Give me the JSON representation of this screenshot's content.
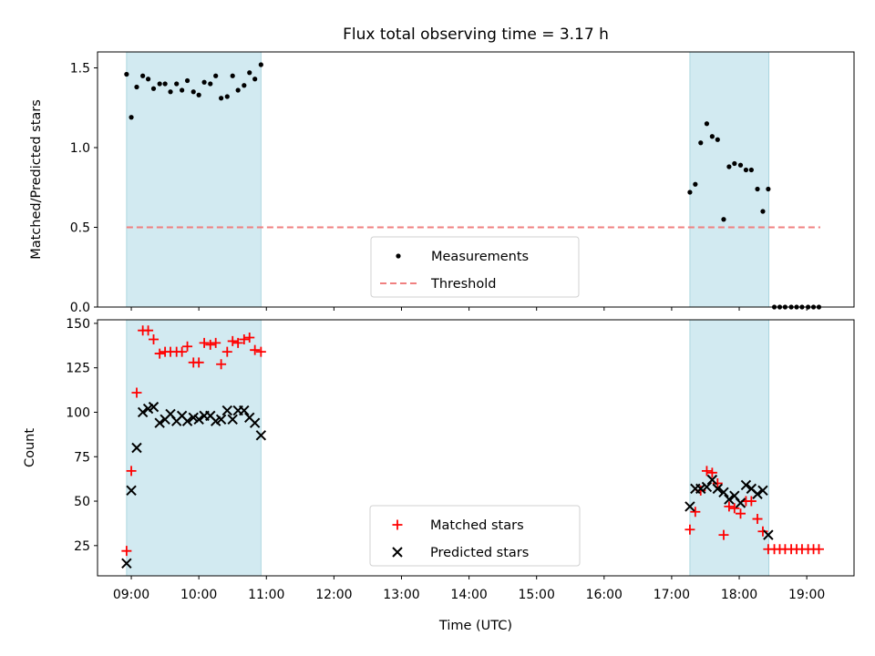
{
  "figure": {
    "title": "Flux total observing time = 3.17 h",
    "xlabel": "Time (UTC)"
  },
  "colors": {
    "shade": "#add8e6",
    "threshold": "#f08080",
    "measurement": "#000000",
    "matched": "#ff0000",
    "predicted": "#000000"
  },
  "chart_data": [
    {
      "type": "scatter",
      "name": "top",
      "ylabel": "Matched/Predicted stars",
      "x_unit": "hours UTC",
      "xlim": [
        8.5,
        19.7
      ],
      "ylim": [
        0,
        1.6
      ],
      "yticks": [
        0.0,
        0.5,
        1.0,
        1.5
      ],
      "ytick_labels": [
        "0.0",
        "0.5",
        "1.0",
        "1.5"
      ],
      "shaded_spans": [
        [
          8.93,
          10.92
        ],
        [
          17.27,
          18.44
        ]
      ],
      "threshold": {
        "name": "Threshold",
        "value": 0.5,
        "x_range": [
          8.93,
          19.2
        ]
      },
      "legend": {
        "position": "lower center",
        "entries": [
          "Measurements",
          "Threshold"
        ]
      },
      "series": [
        {
          "name": "Measurements",
          "marker": "dot",
          "x": [
            8.93,
            9.0,
            9.08,
            9.17,
            9.25,
            9.33,
            9.42,
            9.5,
            9.58,
            9.67,
            9.75,
            9.83,
            9.92,
            10.0,
            10.08,
            10.17,
            10.25,
            10.33,
            10.42,
            10.5,
            10.58,
            10.67,
            10.75,
            10.83,
            10.92,
            17.27,
            17.35,
            17.43,
            17.52,
            17.6,
            17.68,
            17.77,
            17.85,
            17.93,
            18.02,
            18.1,
            18.18,
            18.27,
            18.35,
            18.43,
            18.52,
            18.6,
            18.68,
            18.77,
            18.85,
            18.93,
            19.02,
            19.1,
            19.18
          ],
          "y": [
            1.46,
            1.19,
            1.38,
            1.45,
            1.43,
            1.37,
            1.4,
            1.4,
            1.35,
            1.4,
            1.36,
            1.42,
            1.35,
            1.33,
            1.41,
            1.4,
            1.45,
            1.31,
            1.32,
            1.45,
            1.36,
            1.39,
            1.47,
            1.43,
            1.52,
            0.72,
            0.77,
            1.03,
            1.15,
            1.07,
            1.05,
            0.55,
            0.88,
            0.9,
            0.89,
            0.86,
            0.86,
            0.74,
            0.6,
            0.74,
            0.0,
            0.0,
            0.0,
            0.0,
            0.0,
            0.0,
            0.0,
            0.0,
            0.0
          ]
        }
      ]
    },
    {
      "type": "scatter",
      "name": "bottom",
      "ylabel": "Count",
      "x_unit": "hours UTC",
      "xlim": [
        8.5,
        19.7
      ],
      "ylim": [
        8,
        152
      ],
      "yticks": [
        25,
        50,
        75,
        100,
        125,
        150
      ],
      "ytick_labels": [
        "25",
        "50",
        "75",
        "100",
        "125",
        "150"
      ],
      "xticks": [
        9,
        10,
        11,
        12,
        13,
        14,
        15,
        16,
        17,
        18,
        19
      ],
      "xtick_labels": [
        "09:00",
        "10:00",
        "11:00",
        "12:00",
        "13:00",
        "14:00",
        "15:00",
        "16:00",
        "17:00",
        "18:00",
        "19:00"
      ],
      "shaded_spans": [
        [
          8.93,
          10.92
        ],
        [
          17.27,
          18.44
        ]
      ],
      "legend": {
        "position": "lower center",
        "entries": [
          "Matched stars",
          "Predicted stars"
        ]
      },
      "series": [
        {
          "name": "Matched stars",
          "marker": "plus",
          "x": [
            8.93,
            9.0,
            9.08,
            9.17,
            9.25,
            9.33,
            9.42,
            9.5,
            9.58,
            9.67,
            9.75,
            9.83,
            9.92,
            10.0,
            10.08,
            10.17,
            10.25,
            10.33,
            10.42,
            10.5,
            10.58,
            10.67,
            10.75,
            10.83,
            10.92,
            17.27,
            17.35,
            17.43,
            17.52,
            17.6,
            17.68,
            17.77,
            17.85,
            17.93,
            18.02,
            18.1,
            18.18,
            18.27,
            18.35,
            18.43,
            18.52,
            18.6,
            18.68,
            18.77,
            18.85,
            18.93,
            19.02,
            19.1,
            19.18
          ],
          "y": [
            22,
            67,
            111,
            146,
            146,
            141,
            133,
            134,
            134,
            134,
            134,
            137,
            128,
            128,
            139,
            138,
            139,
            127,
            134,
            140,
            139,
            141,
            142,
            135,
            134,
            34,
            44,
            56,
            67,
            66,
            60,
            31,
            47,
            46,
            43,
            50,
            50,
            40,
            33,
            23,
            23,
            23,
            23,
            23,
            23,
            23,
            23,
            23,
            23
          ]
        },
        {
          "name": "Predicted stars",
          "marker": "x",
          "x": [
            8.93,
            9.0,
            9.08,
            9.17,
            9.25,
            9.33,
            9.42,
            9.5,
            9.58,
            9.67,
            9.75,
            9.83,
            9.92,
            10.0,
            10.08,
            10.17,
            10.25,
            10.33,
            10.42,
            10.5,
            10.58,
            10.67,
            10.75,
            10.83,
            10.92,
            17.27,
            17.35,
            17.43,
            17.52,
            17.6,
            17.68,
            17.77,
            17.85,
            17.93,
            18.02,
            18.1,
            18.18,
            18.27,
            18.35,
            18.43
          ],
          "y": [
            15,
            56,
            80,
            100,
            102,
            103,
            94,
            96,
            99,
            95,
            98,
            95,
            97,
            96,
            98,
            98,
            95,
            96,
            101,
            96,
            101,
            101,
            97,
            94,
            87,
            47,
            57,
            57,
            58,
            62,
            57,
            55,
            51,
            53,
            49,
            59,
            57,
            54,
            56,
            31
          ]
        }
      ]
    }
  ]
}
